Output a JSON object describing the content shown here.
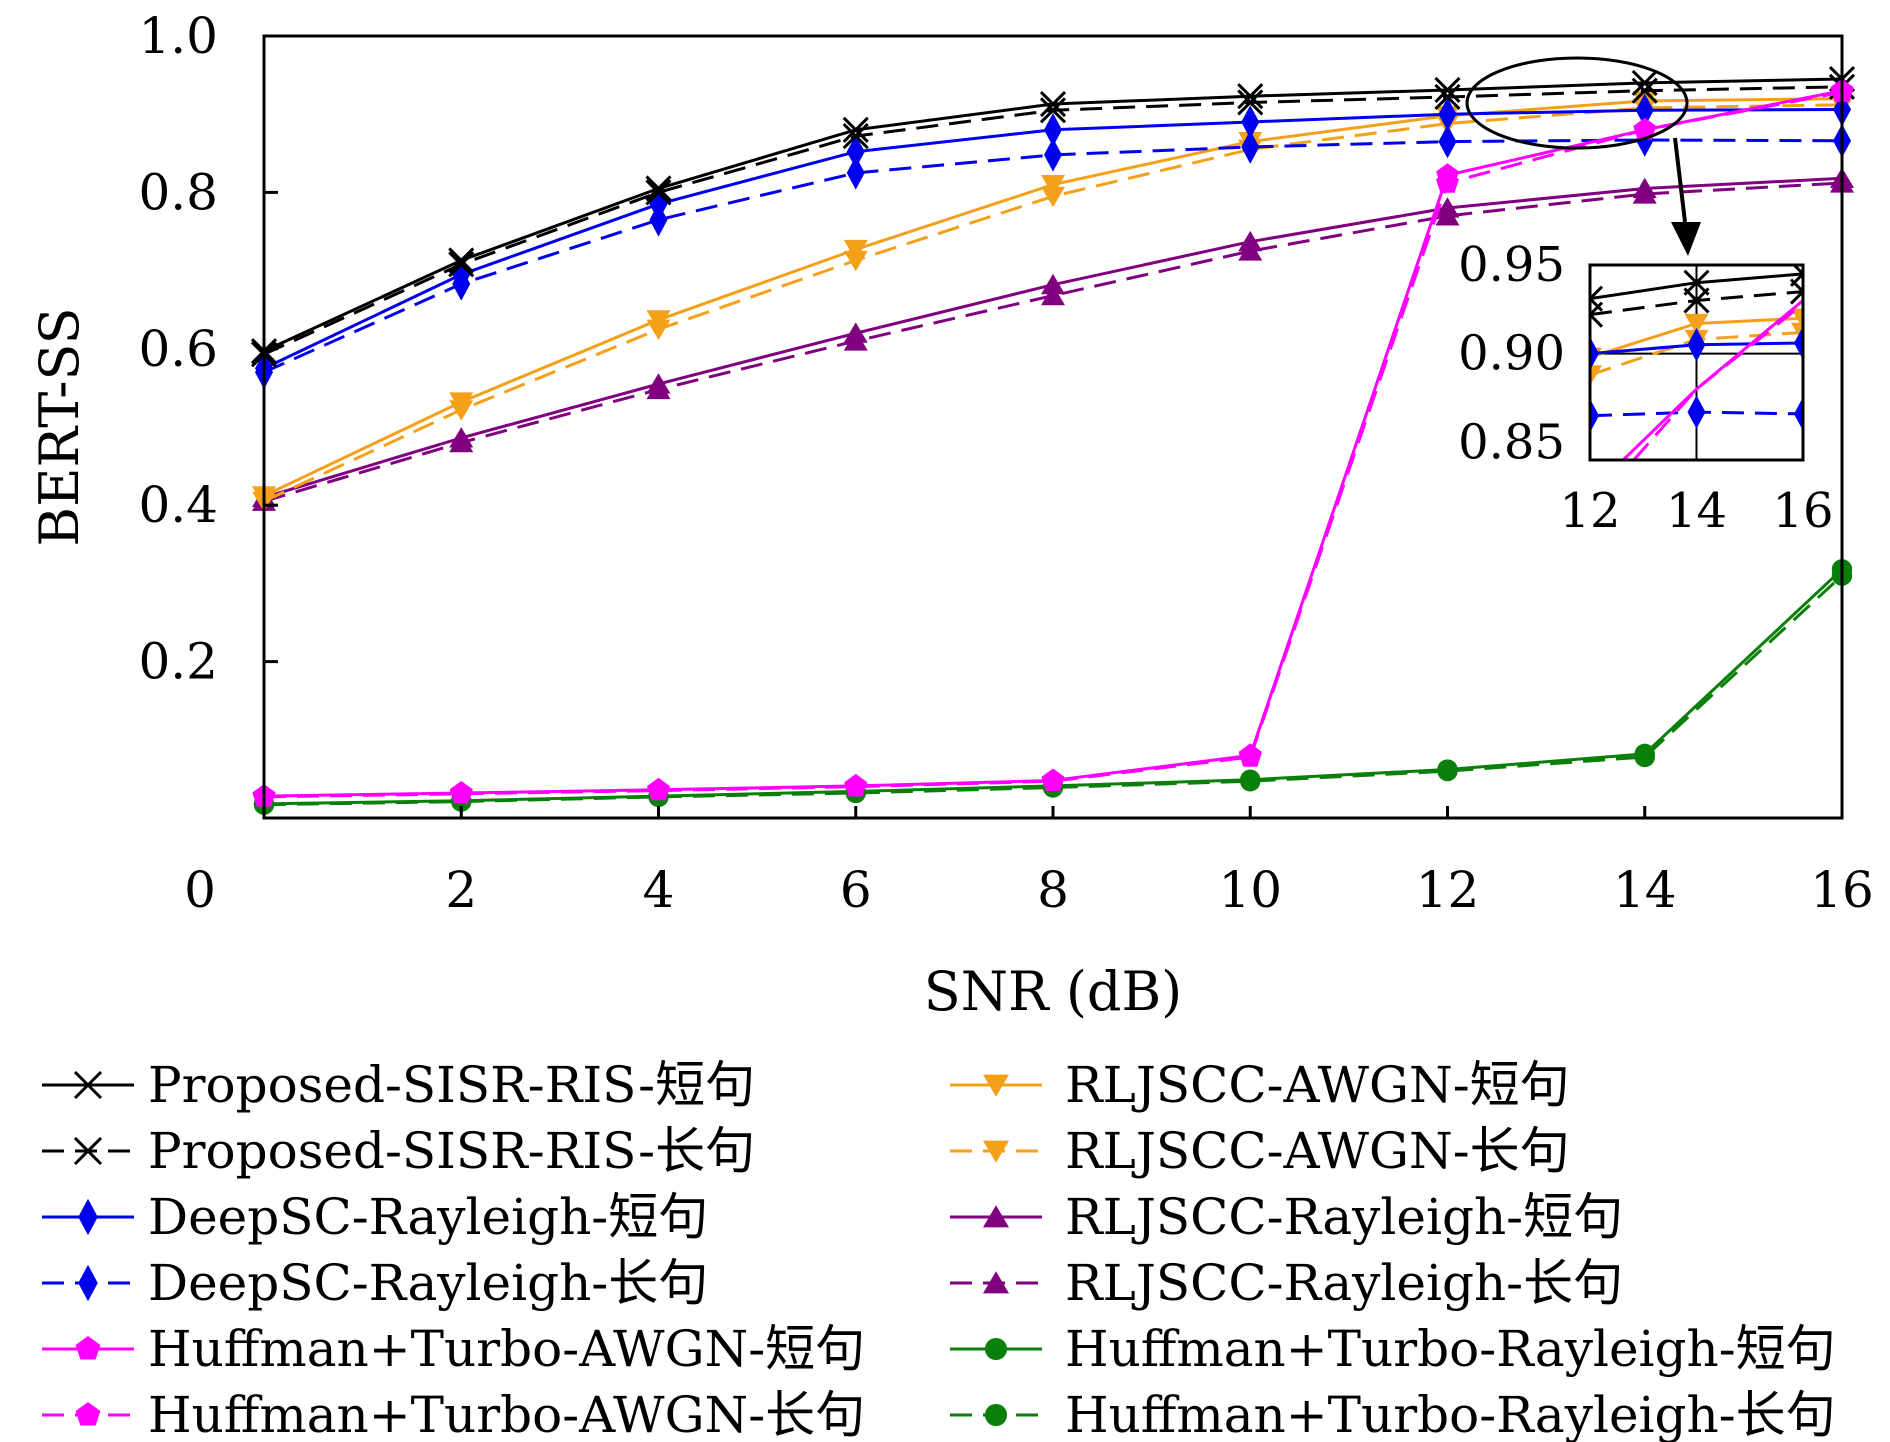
{
  "chart_data": {
    "type": "line",
    "title": "",
    "xlabel": "SNR (dB)",
    "ylabel": "BERT-SS",
    "xlim": [
      0,
      16
    ],
    "ylim": [
      0,
      1.0
    ],
    "x_ticks": [
      "0",
      "2",
      "4",
      "6",
      "8",
      "10",
      "12",
      "14",
      "16"
    ],
    "y_ticks": [
      "0.2",
      "0.4",
      "0.6",
      "0.8",
      "1.0"
    ],
    "x": [
      0,
      2,
      4,
      6,
      8,
      10,
      12,
      14,
      16
    ],
    "grid": false,
    "legend_position": "bottom",
    "series": [
      {
        "name": "Proposed-SISR-RIS-短句",
        "color": "#000000",
        "dash": "solid",
        "marker": "x",
        "values": [
          0.597,
          0.713,
          0.805,
          0.88,
          0.913,
          0.923,
          0.931,
          0.94,
          0.945
        ]
      },
      {
        "name": "Proposed-SISR-RIS-长句",
        "color": "#000000",
        "dash": "dashed",
        "marker": "x",
        "values": [
          0.593,
          0.708,
          0.8,
          0.872,
          0.905,
          0.915,
          0.922,
          0.93,
          0.935
        ]
      },
      {
        "name": "DeepSC-Rayleigh-短句",
        "color": "#0000ee",
        "dash": "solid",
        "marker": "diamond",
        "values": [
          0.575,
          0.695,
          0.785,
          0.852,
          0.88,
          0.89,
          0.9,
          0.905,
          0.906
        ]
      },
      {
        "name": "DeepSC-Rayleigh-长句",
        "color": "#0000ee",
        "dash": "dashed",
        "marker": "diamond",
        "values": [
          0.57,
          0.683,
          0.765,
          0.825,
          0.848,
          0.858,
          0.865,
          0.867,
          0.866
        ]
      },
      {
        "name": "Huffman+Turbo-AWGN-短句",
        "color": "#ff00ff",
        "dash": "solid",
        "marker": "pentagon",
        "values": [
          0.028,
          0.032,
          0.036,
          0.041,
          0.048,
          0.08,
          0.822,
          0.88,
          0.93
        ]
      },
      {
        "name": "Huffman+Turbo-AWGN-长句",
        "color": "#ff00ff",
        "dash": "dashed",
        "marker": "pentagon",
        "values": [
          0.027,
          0.031,
          0.035,
          0.04,
          0.047,
          0.078,
          0.812,
          0.88,
          0.928
        ]
      },
      {
        "name": "RLJSCC-AWGN-短句",
        "color": "#f5a01a",
        "dash": "solid",
        "marker": "triangle-down",
        "values": [
          0.412,
          0.532,
          0.637,
          0.727,
          0.81,
          0.865,
          0.898,
          0.917,
          0.92
        ]
      },
      {
        "name": "RLJSCC-AWGN-长句",
        "color": "#f5a01a",
        "dash": "dashed",
        "marker": "triangle-down",
        "values": [
          0.405,
          0.522,
          0.625,
          0.713,
          0.795,
          0.855,
          0.888,
          0.908,
          0.912
        ]
      },
      {
        "name": "RLJSCC-Rayleigh-短句",
        "color": "#800080",
        "dash": "solid",
        "marker": "triangle-up",
        "values": [
          0.41,
          0.486,
          0.555,
          0.62,
          0.682,
          0.737,
          0.78,
          0.805,
          0.818
        ]
      },
      {
        "name": "RLJSCC-Rayleigh-长句",
        "color": "#800080",
        "dash": "dashed",
        "marker": "triangle-up",
        "values": [
          0.405,
          0.48,
          0.548,
          0.61,
          0.668,
          0.725,
          0.77,
          0.798,
          0.812
        ]
      },
      {
        "name": "Huffman+Turbo-Rayleigh-短句",
        "color": "#0a7f0a",
        "dash": "solid",
        "marker": "circle",
        "values": [
          0.018,
          0.022,
          0.028,
          0.034,
          0.041,
          0.049,
          0.062,
          0.082,
          0.318
        ]
      },
      {
        "name": "Huffman+Turbo-Rayleigh-长句",
        "color": "#0a7f0a",
        "dash": "dashed",
        "marker": "circle",
        "values": [
          0.017,
          0.021,
          0.027,
          0.032,
          0.039,
          0.047,
          0.06,
          0.078,
          0.31
        ]
      }
    ],
    "inset": {
      "x_ticks": [
        "12",
        "14",
        "16"
      ],
      "y_ticks": [
        "0.85",
        "0.90",
        "0.95"
      ],
      "xlim": [
        12,
        16
      ],
      "ylim": [
        0.84,
        0.95
      ]
    }
  }
}
